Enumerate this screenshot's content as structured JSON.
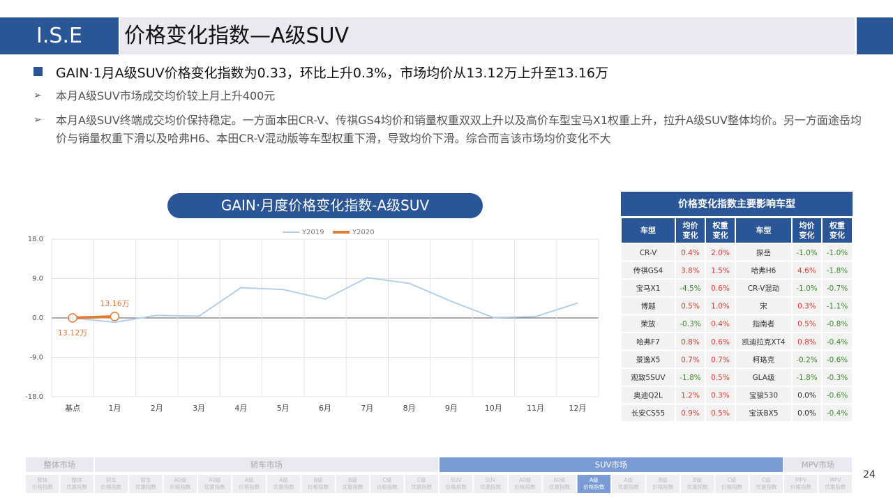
{
  "header": {
    "logo": "I.S.E",
    "title": "价格变化指数—A级SUV"
  },
  "bullets": {
    "main": "GAIN·1月A级SUV价格变化指数为0.33，环比上升0.3%，市场均价从13.12万上升至13.16万",
    "points": [
      "本月A级SUV市场成交均价较上月上升400元",
      "本月A级SUV终端成交均价保持稳定。一方面本田CR-V、传祺GS4均价和销量权重双双上升以及高价车型宝马X1权重上升，拉升A级SUV整体均价。另一方面途岳均价与销量权重下滑以及哈弗H6、本田CR-V混动版等车型权重下滑，导致均价下滑。综合而言该市场均价变化不大"
    ]
  },
  "chart_data": {
    "type": "line",
    "title": "GAIN·月度价格变化指数-A级SUV",
    "categories": [
      "基点",
      "1月",
      "2月",
      "3月",
      "4月",
      "5月",
      "6月",
      "7月",
      "8月",
      "9月",
      "10月",
      "11月",
      "12月"
    ],
    "series": [
      {
        "name": "Y2019",
        "color": "#b4d0e8",
        "values": [
          0,
          -1.0,
          0.6,
          0.4,
          6.9,
          6.5,
          4.3,
          9.2,
          7.9,
          3.8,
          0.1,
          0.3,
          3.4
        ]
      },
      {
        "name": "Y2020",
        "color": "#e07b39",
        "values": [
          0,
          0.33,
          null,
          null,
          null,
          null,
          null,
          null,
          null,
          null,
          null,
          null,
          null
        ]
      }
    ],
    "ylim": [
      -18,
      18
    ],
    "yticks": [
      {
        "value": 18,
        "label": "18.0"
      },
      {
        "value": 9,
        "label": "9.0"
      },
      {
        "value": 0,
        "label": "0.0"
      },
      {
        "value": -9,
        "label": "-9.0"
      },
      {
        "value": -18,
        "label": "-18.0"
      }
    ],
    "grid": true,
    "legend": "top",
    "annotations": [
      "13.12万",
      "13.16万"
    ]
  },
  "table": {
    "title": "价格变化指数主要影响车型",
    "header": [
      "车型",
      "均价变化",
      "权重变化",
      "车型",
      "均价变化",
      "权重变化"
    ],
    "rows": [
      [
        "CR-V",
        "0.4%",
        "2.0%",
        "探岳",
        "-1.0%",
        "-1.0%"
      ],
      [
        "传祺GS4",
        "3.8%",
        "1.5%",
        "哈弗H6",
        "4.6%",
        "-1.8%"
      ],
      [
        "宝马X1",
        "-4.5%",
        "0.6%",
        "CR-V混动",
        "-1.0%",
        "-0.7%"
      ],
      [
        "博越",
        "0.5%",
        "1.0%",
        "宋",
        "0.3%",
        "-1.1%"
      ],
      [
        "荣放",
        "-0.3%",
        "0.4%",
        "指南者",
        "0.5%",
        "-0.8%"
      ],
      [
        "哈弗F7",
        "0.8%",
        "0.6%",
        "凯迪拉克XT4",
        "0.8%",
        "-0.4%"
      ],
      [
        "景逸X5",
        "0.7%",
        "0.7%",
        "柯珞克",
        "-0.2%",
        "-0.6%"
      ],
      [
        "观致5SUV",
        "-1.8%",
        "0.5%",
        "GLA级",
        "-1.8%",
        "-0.3%"
      ],
      [
        "奥迪Q2L",
        "1.2%",
        "0.3%",
        "宝骏530",
        "0.0%",
        "-0.6%"
      ],
      [
        "长安CS55",
        "0.9%",
        "0.5%",
        "宝沃BX5",
        "0.0%",
        "-0.4%"
      ]
    ]
  },
  "nav": {
    "groups": [
      "整体市场",
      "轿车市场",
      "SUV市场",
      "MPV市场"
    ],
    "group_sizes": [
      2,
      10,
      10,
      2
    ],
    "active_group": 2,
    "items": [
      [
        "整体",
        "价格指数"
      ],
      [
        "整体",
        "优惠指数"
      ],
      [
        "轿车",
        "价格指数"
      ],
      [
        "轿车",
        "优惠指数"
      ],
      [
        "A0级",
        "价格指数"
      ],
      [
        "A0级",
        "优惠指数"
      ],
      [
        "A级",
        "价格指数"
      ],
      [
        "A级",
        "优惠指数"
      ],
      [
        "B级",
        "价格指数"
      ],
      [
        "B级",
        "优惠指数"
      ],
      [
        "C级",
        "价格指数"
      ],
      [
        "C级",
        "优惠指数"
      ],
      [
        "SUV",
        "价格指数"
      ],
      [
        "SUV",
        "优惠指数"
      ],
      [
        "A0级",
        "价格指数"
      ],
      [
        "A0级",
        "优惠指数"
      ],
      [
        "A级",
        "价格指数"
      ],
      [
        "A级",
        "优惠指数"
      ],
      [
        "B级",
        "价格指数"
      ],
      [
        "B级",
        "优惠指数"
      ],
      [
        "C级",
        "价格指数"
      ],
      [
        "C级",
        "优惠指数"
      ],
      [
        "MPV",
        "价格指数"
      ],
      [
        "MPV",
        "优惠指数"
      ]
    ],
    "active_item": 16
  },
  "page_number": "24"
}
